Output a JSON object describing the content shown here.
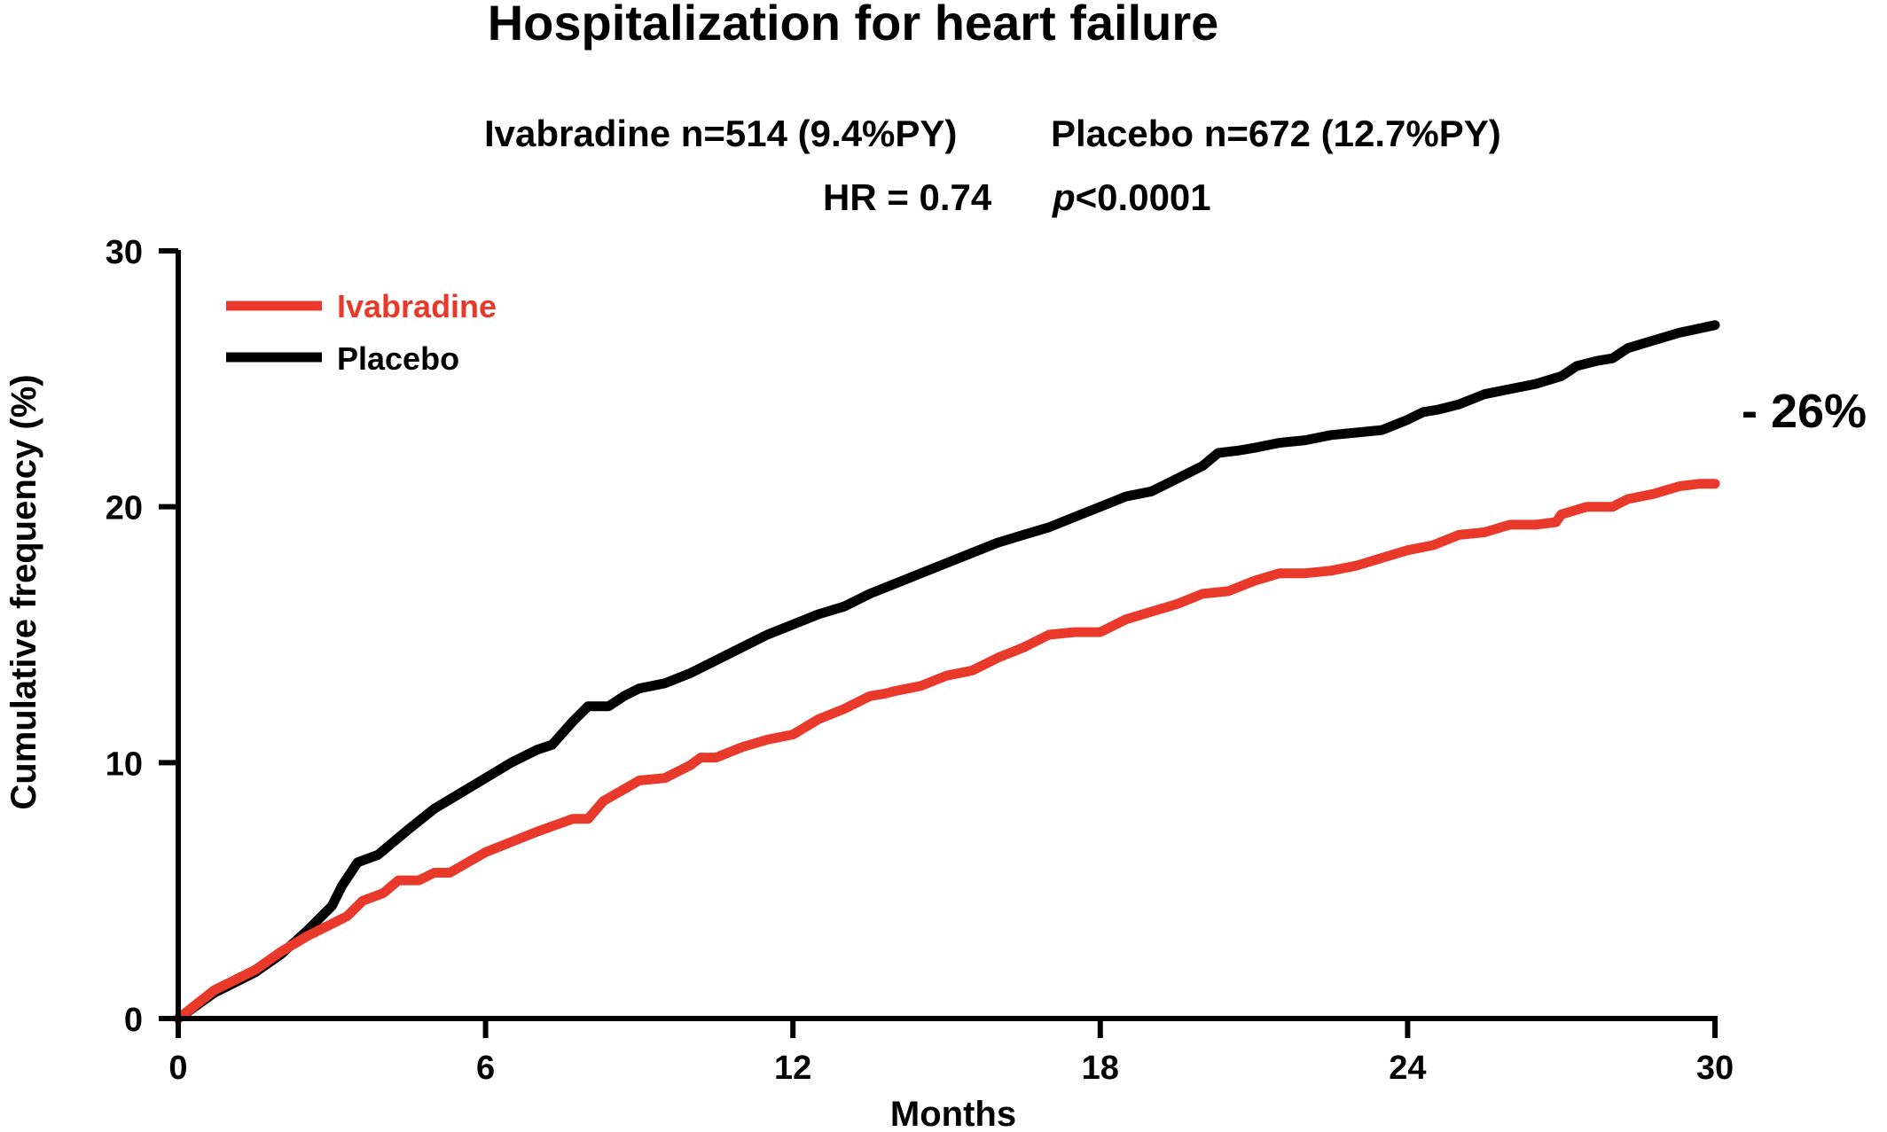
{
  "chart_data": {
    "type": "line",
    "title": "Hospitalization for heart failure",
    "subtitle_line1_part1": "Ivabradine n=514 (9.4%PY)",
    "subtitle_line1_part2": "Placebo n=672 (12.7%PY)",
    "subtitle_line2_hr": "HR = 0.74",
    "subtitle_line2_p": "p",
    "subtitle_line2_pval": "<0.0001",
    "xlabel": "Months",
    "ylabel": "Cumulative frequency (%)",
    "xlim": [
      0,
      30
    ],
    "ylim": [
      0,
      30
    ],
    "x_ticks": [
      0,
      6,
      12,
      18,
      24,
      30
    ],
    "y_ticks": [
      0,
      10,
      20,
      30
    ],
    "grid": false,
    "legend_position": "top-left",
    "annotation": "- 26%",
    "series": [
      {
        "name": "Ivabradine",
        "color": "#e8392a",
        "points": [
          [
            0,
            0
          ],
          [
            0.7,
            1.1
          ],
          [
            1.5,
            1.9
          ],
          [
            2,
            2.6
          ],
          [
            2.5,
            3.2
          ],
          [
            3.3,
            4
          ],
          [
            3.6,
            4.6
          ],
          [
            4,
            4.9
          ],
          [
            4.3,
            5.4
          ],
          [
            4.7,
            5.4
          ],
          [
            5,
            5.7
          ],
          [
            5.3,
            5.7
          ],
          [
            6,
            6.5
          ],
          [
            7,
            7.3
          ],
          [
            7.7,
            7.8
          ],
          [
            8,
            7.8
          ],
          [
            8.3,
            8.5
          ],
          [
            9,
            9.3
          ],
          [
            9.5,
            9.4
          ],
          [
            10,
            9.9
          ],
          [
            10.2,
            10.2
          ],
          [
            10.5,
            10.2
          ],
          [
            11,
            10.6
          ],
          [
            11.5,
            10.9
          ],
          [
            12,
            11.1
          ],
          [
            12.5,
            11.7
          ],
          [
            13,
            12.1
          ],
          [
            13.5,
            12.6
          ],
          [
            13.8,
            12.7
          ],
          [
            14,
            12.8
          ],
          [
            14.5,
            13
          ],
          [
            15,
            13.4
          ],
          [
            15.5,
            13.6
          ],
          [
            15.8,
            13.9
          ],
          [
            16,
            14.1
          ],
          [
            16.5,
            14.5
          ],
          [
            17,
            15
          ],
          [
            17.5,
            15.1
          ],
          [
            18,
            15.1
          ],
          [
            18.5,
            15.6
          ],
          [
            19,
            15.9
          ],
          [
            19.5,
            16.2
          ],
          [
            20,
            16.6
          ],
          [
            20.5,
            16.7
          ],
          [
            21,
            17.1
          ],
          [
            21.5,
            17.4
          ],
          [
            22,
            17.4
          ],
          [
            22.5,
            17.5
          ],
          [
            23,
            17.7
          ],
          [
            23.5,
            18
          ],
          [
            24,
            18.3
          ],
          [
            24.5,
            18.5
          ],
          [
            25,
            18.9
          ],
          [
            25.5,
            19
          ],
          [
            26,
            19.3
          ],
          [
            26.5,
            19.3
          ],
          [
            26.9,
            19.4
          ],
          [
            27,
            19.7
          ],
          [
            27.5,
            20
          ],
          [
            28,
            20
          ],
          [
            28.3,
            20.3
          ],
          [
            28.8,
            20.5
          ],
          [
            29.3,
            20.8
          ],
          [
            29.7,
            20.9
          ],
          [
            30,
            20.9
          ]
        ]
      },
      {
        "name": "Placebo",
        "color": "#000000",
        "points": [
          [
            0,
            0
          ],
          [
            0.7,
            1
          ],
          [
            1.5,
            1.8
          ],
          [
            2,
            2.5
          ],
          [
            2.5,
            3.4
          ],
          [
            3,
            4.4
          ],
          [
            3.2,
            5.2
          ],
          [
            3.5,
            6.1
          ],
          [
            3.9,
            6.4
          ],
          [
            4.5,
            7.4
          ],
          [
            5,
            8.2
          ],
          [
            5.5,
            8.8
          ],
          [
            6,
            9.4
          ],
          [
            6.5,
            10
          ],
          [
            7,
            10.5
          ],
          [
            7.3,
            10.7
          ],
          [
            7.7,
            11.6
          ],
          [
            8,
            12.2
          ],
          [
            8.4,
            12.2
          ],
          [
            8.7,
            12.6
          ],
          [
            9,
            12.9
          ],
          [
            9.5,
            13.1
          ],
          [
            10,
            13.5
          ],
          [
            10.5,
            14
          ],
          [
            11,
            14.5
          ],
          [
            11.5,
            15
          ],
          [
            12,
            15.4
          ],
          [
            12.5,
            15.8
          ],
          [
            13,
            16.1
          ],
          [
            13.5,
            16.6
          ],
          [
            14,
            17
          ],
          [
            14.5,
            17.4
          ],
          [
            15,
            17.8
          ],
          [
            15.5,
            18.2
          ],
          [
            16,
            18.6
          ],
          [
            16.5,
            18.9
          ],
          [
            17,
            19.2
          ],
          [
            17.5,
            19.6
          ],
          [
            18,
            20
          ],
          [
            18.5,
            20.4
          ],
          [
            19,
            20.6
          ],
          [
            19.5,
            21.1
          ],
          [
            20,
            21.6
          ],
          [
            20.3,
            22.1
          ],
          [
            20.7,
            22.2
          ],
          [
            21,
            22.3
          ],
          [
            21.5,
            22.5
          ],
          [
            22,
            22.6
          ],
          [
            22.5,
            22.8
          ],
          [
            23,
            22.9
          ],
          [
            23.5,
            23
          ],
          [
            24,
            23.4
          ],
          [
            24.3,
            23.7
          ],
          [
            24.6,
            23.8
          ],
          [
            25,
            24
          ],
          [
            25.5,
            24.4
          ],
          [
            26,
            24.6
          ],
          [
            26.5,
            24.8
          ],
          [
            27,
            25.1
          ],
          [
            27.3,
            25.5
          ],
          [
            27.7,
            25.7
          ],
          [
            28,
            25.8
          ],
          [
            28.3,
            26.2
          ],
          [
            28.8,
            26.5
          ],
          [
            29.3,
            26.8
          ],
          [
            30,
            27.1
          ]
        ]
      }
    ]
  }
}
